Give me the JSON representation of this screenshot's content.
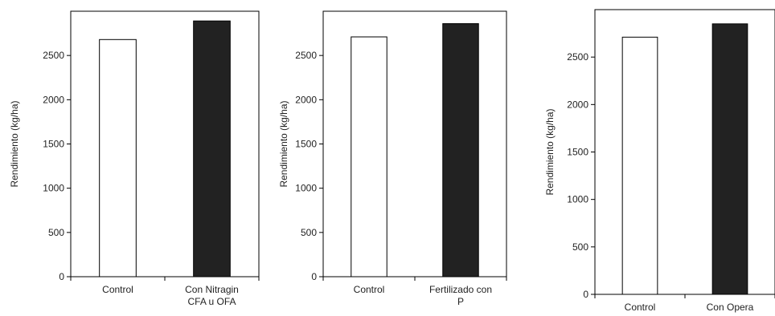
{
  "chart_data": [
    {
      "type": "bar",
      "ylabel": "Rendimiento (kg/ha)",
      "ylim": [
        0,
        3000
      ],
      "yticks": [
        0,
        500,
        1000,
        1500,
        2000,
        2500
      ],
      "categories": [
        [
          "Control"
        ],
        [
          "Con Nitragin",
          "CFA u OFA"
        ]
      ],
      "values": [
        2680,
        2890
      ],
      "colors": [
        "#ffffff",
        "#222222"
      ],
      "grid": false
    },
    {
      "type": "bar",
      "ylabel": "Rendimiento (kg/ha)",
      "ylim": [
        0,
        3000
      ],
      "yticks": [
        0,
        500,
        1000,
        1500,
        2000,
        2500
      ],
      "categories": [
        [
          "Control"
        ],
        [
          "Fertilizado con",
          "P"
        ]
      ],
      "values": [
        2710,
        2860
      ],
      "colors": [
        "#ffffff",
        "#222222"
      ],
      "grid": false
    },
    {
      "type": "bar",
      "ylabel": "Rendimiento (kg/ha)",
      "ylim": [
        0,
        3000
      ],
      "yticks": [
        0,
        500,
        1000,
        1500,
        2000,
        2500
      ],
      "categories": [
        [
          "Control"
        ],
        [
          "Con Opera"
        ]
      ],
      "values": [
        2710,
        2850
      ],
      "colors": [
        "#ffffff",
        "#222222"
      ],
      "grid": false
    }
  ]
}
